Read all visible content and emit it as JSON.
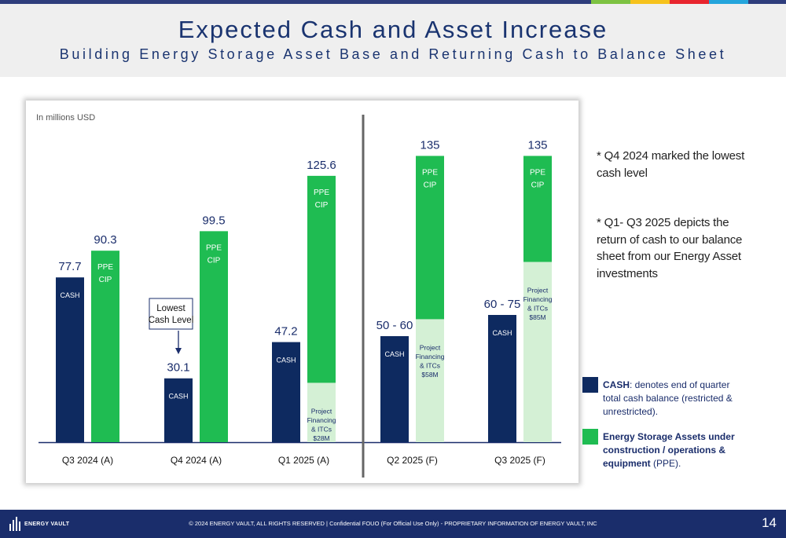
{
  "header": {
    "title": "Expected Cash and Asset Increase",
    "subtitle": "Building Energy Storage Asset Base and Returning Cash to Balance Sheet"
  },
  "colors": {
    "cash": "#0e2a60",
    "ppe": "#1fbc52",
    "project_financing": "#d4f0d5",
    "navy": "#1a2d6b",
    "top_accents": [
      "#7dc242",
      "#f6c21c",
      "#e8252e",
      "#24a5dc"
    ]
  },
  "chart_data": {
    "type": "bar",
    "units_label": "In millions USD",
    "categories": [
      "Q3 2024 (A)",
      "Q4 2024 (A)",
      "Q1 2025 (A)",
      "Q2 2025 (F)",
      "Q3 2025 (F)"
    ],
    "cash": [
      {
        "value": 77.7,
        "label": "77.7",
        "bar_label": "CASH"
      },
      {
        "value": 30.1,
        "label": "30.1",
        "bar_label": "CASH"
      },
      {
        "value": 47.2,
        "label": "47.2",
        "bar_label": "CASH"
      },
      {
        "value": 50,
        "value_high": 60,
        "label": "50 - 60",
        "bar_label": "CASH"
      },
      {
        "value": 60,
        "value_high": 75,
        "label": "60 - 75",
        "bar_label": "CASH"
      }
    ],
    "ppe": [
      {
        "value": 90.3,
        "label": "90.3",
        "bar_label": [
          "PPE",
          "CIP"
        ],
        "financing": null
      },
      {
        "value": 99.5,
        "label": "99.5",
        "bar_label": [
          "PPE",
          "CIP"
        ],
        "financing": null
      },
      {
        "value": 125.6,
        "label": "125.6",
        "bar_label": [
          "PPE",
          "CIP"
        ],
        "financing": {
          "value": 28,
          "label": [
            "Project",
            "Financing",
            "& ITCs",
            "$28M"
          ]
        }
      },
      {
        "value": 135,
        "label": "135",
        "bar_label": [
          "PPE",
          "CIP"
        ],
        "financing": {
          "value": 58,
          "label": [
            "Project",
            "Financing",
            "& ITCs",
            "$58M"
          ]
        }
      },
      {
        "value": 135,
        "label": "135",
        "bar_label": [
          "PPE",
          "CIP"
        ],
        "financing": {
          "value": 85,
          "label": [
            "Project",
            "Financing",
            "& ITCs",
            "$85M"
          ]
        }
      }
    ],
    "annotation": {
      "lines": [
        "Lowest",
        "Cash Level"
      ],
      "category_index": 1
    },
    "divider_after_index": 2,
    "ylim": [
      0,
      150
    ]
  },
  "notes": [
    "* Q4 2024 marked the lowest cash level",
    "* Q1- Q3 2025 depicts the return of cash to our balance sheet from our Energy Asset investments"
  ],
  "legend": {
    "cash_term": "CASH",
    "cash_desc": ": denotes end of quarter total cash balance (restricted & unrestricted).",
    "ppe_term": "Energy Storage Assets under construction / operations & equipment",
    "ppe_desc": " (PPE)."
  },
  "footer": {
    "logo_text": "ENERGY VAULT",
    "copyright": "© 2024 ENERGY VAULT, ALL RIGHTS RESERVED  |  Confidential FOUO (For Official Use Only) - PROPRIETARY INFORMATION OF ENERGY VAULT, INC",
    "page_number": "14"
  }
}
